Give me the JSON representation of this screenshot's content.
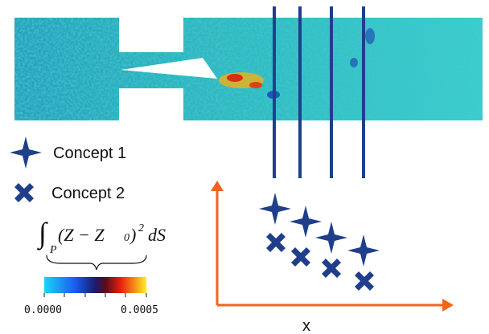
{
  "legend": {
    "items": [
      {
        "label": "Concept 1"
      },
      {
        "label": "Concept 2"
      }
    ]
  },
  "formula": {
    "subscript": "P",
    "integrand": "(Z − Z",
    "index": "0",
    "close": ")",
    "power": "2",
    "differential": "dS"
  },
  "colorbar": {
    "labels": [
      "0.0000",
      "0.0005"
    ]
  },
  "axis": {
    "x_label": "x"
  }
}
